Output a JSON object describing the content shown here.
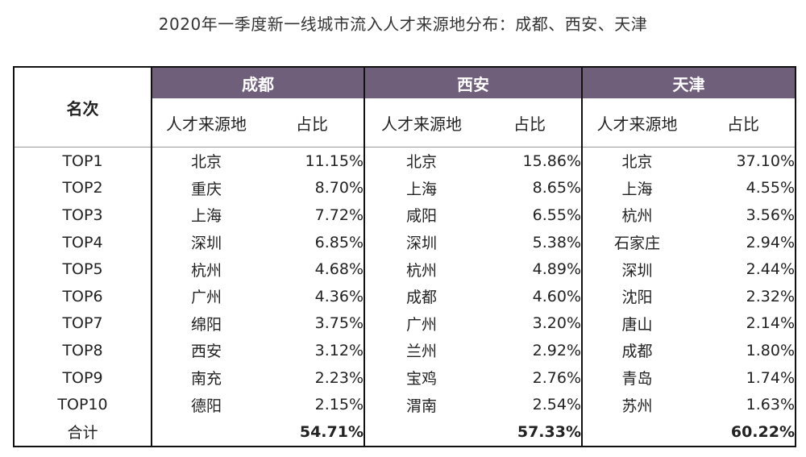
{
  "title": "2020年一季度新一线城市流入人才来源地分布：成都、西安、天津",
  "header": {
    "rank_label": "名次",
    "cities": [
      "成都",
      "西安",
      "天津"
    ],
    "sub_source": "人才来源地",
    "sub_share": "占比"
  },
  "rows": [
    {
      "rank": "TOP1",
      "c1": "北京",
      "p1": "11.15%",
      "c2": "北京",
      "p2": "15.86%",
      "c3": "北京",
      "p3": "37.10%"
    },
    {
      "rank": "TOP2",
      "c1": "重庆",
      "p1": "8.70%",
      "c2": "上海",
      "p2": "8.65%",
      "c3": "上海",
      "p3": "4.55%"
    },
    {
      "rank": "TOP3",
      "c1": "上海",
      "p1": "7.72%",
      "c2": "咸阳",
      "p2": "6.55%",
      "c3": "杭州",
      "p3": "3.56%"
    },
    {
      "rank": "TOP4",
      "c1": "深圳",
      "p1": "6.85%",
      "c2": "深圳",
      "p2": "5.38%",
      "c3": "石家庄",
      "p3": "2.94%"
    },
    {
      "rank": "TOP5",
      "c1": "杭州",
      "p1": "4.68%",
      "c2": "杭州",
      "p2": "4.89%",
      "c3": "深圳",
      "p3": "2.44%"
    },
    {
      "rank": "TOP6",
      "c1": "广州",
      "p1": "4.36%",
      "c2": "成都",
      "p2": "4.60%",
      "c3": "沈阳",
      "p3": "2.32%"
    },
    {
      "rank": "TOP7",
      "c1": "绵阳",
      "p1": "3.75%",
      "c2": "广州",
      "p2": "3.20%",
      "c3": "唐山",
      "p3": "2.14%"
    },
    {
      "rank": "TOP8",
      "c1": "西安",
      "p1": "3.12%",
      "c2": "兰州",
      "p2": "2.92%",
      "c3": "成都",
      "p3": "1.80%"
    },
    {
      "rank": "TOP9",
      "c1": "南充",
      "p1": "2.23%",
      "c2": "宝鸡",
      "p2": "2.76%",
      "c3": "青岛",
      "p3": "1.74%"
    },
    {
      "rank": "TOP10",
      "c1": "德阳",
      "p1": "2.15%",
      "c2": "渭南",
      "p2": "2.54%",
      "c3": "苏州",
      "p3": "1.63%"
    }
  ],
  "total": {
    "label": "合计",
    "p1": "54.71%",
    "p2": "57.33%",
    "p3": "60.22%"
  }
}
